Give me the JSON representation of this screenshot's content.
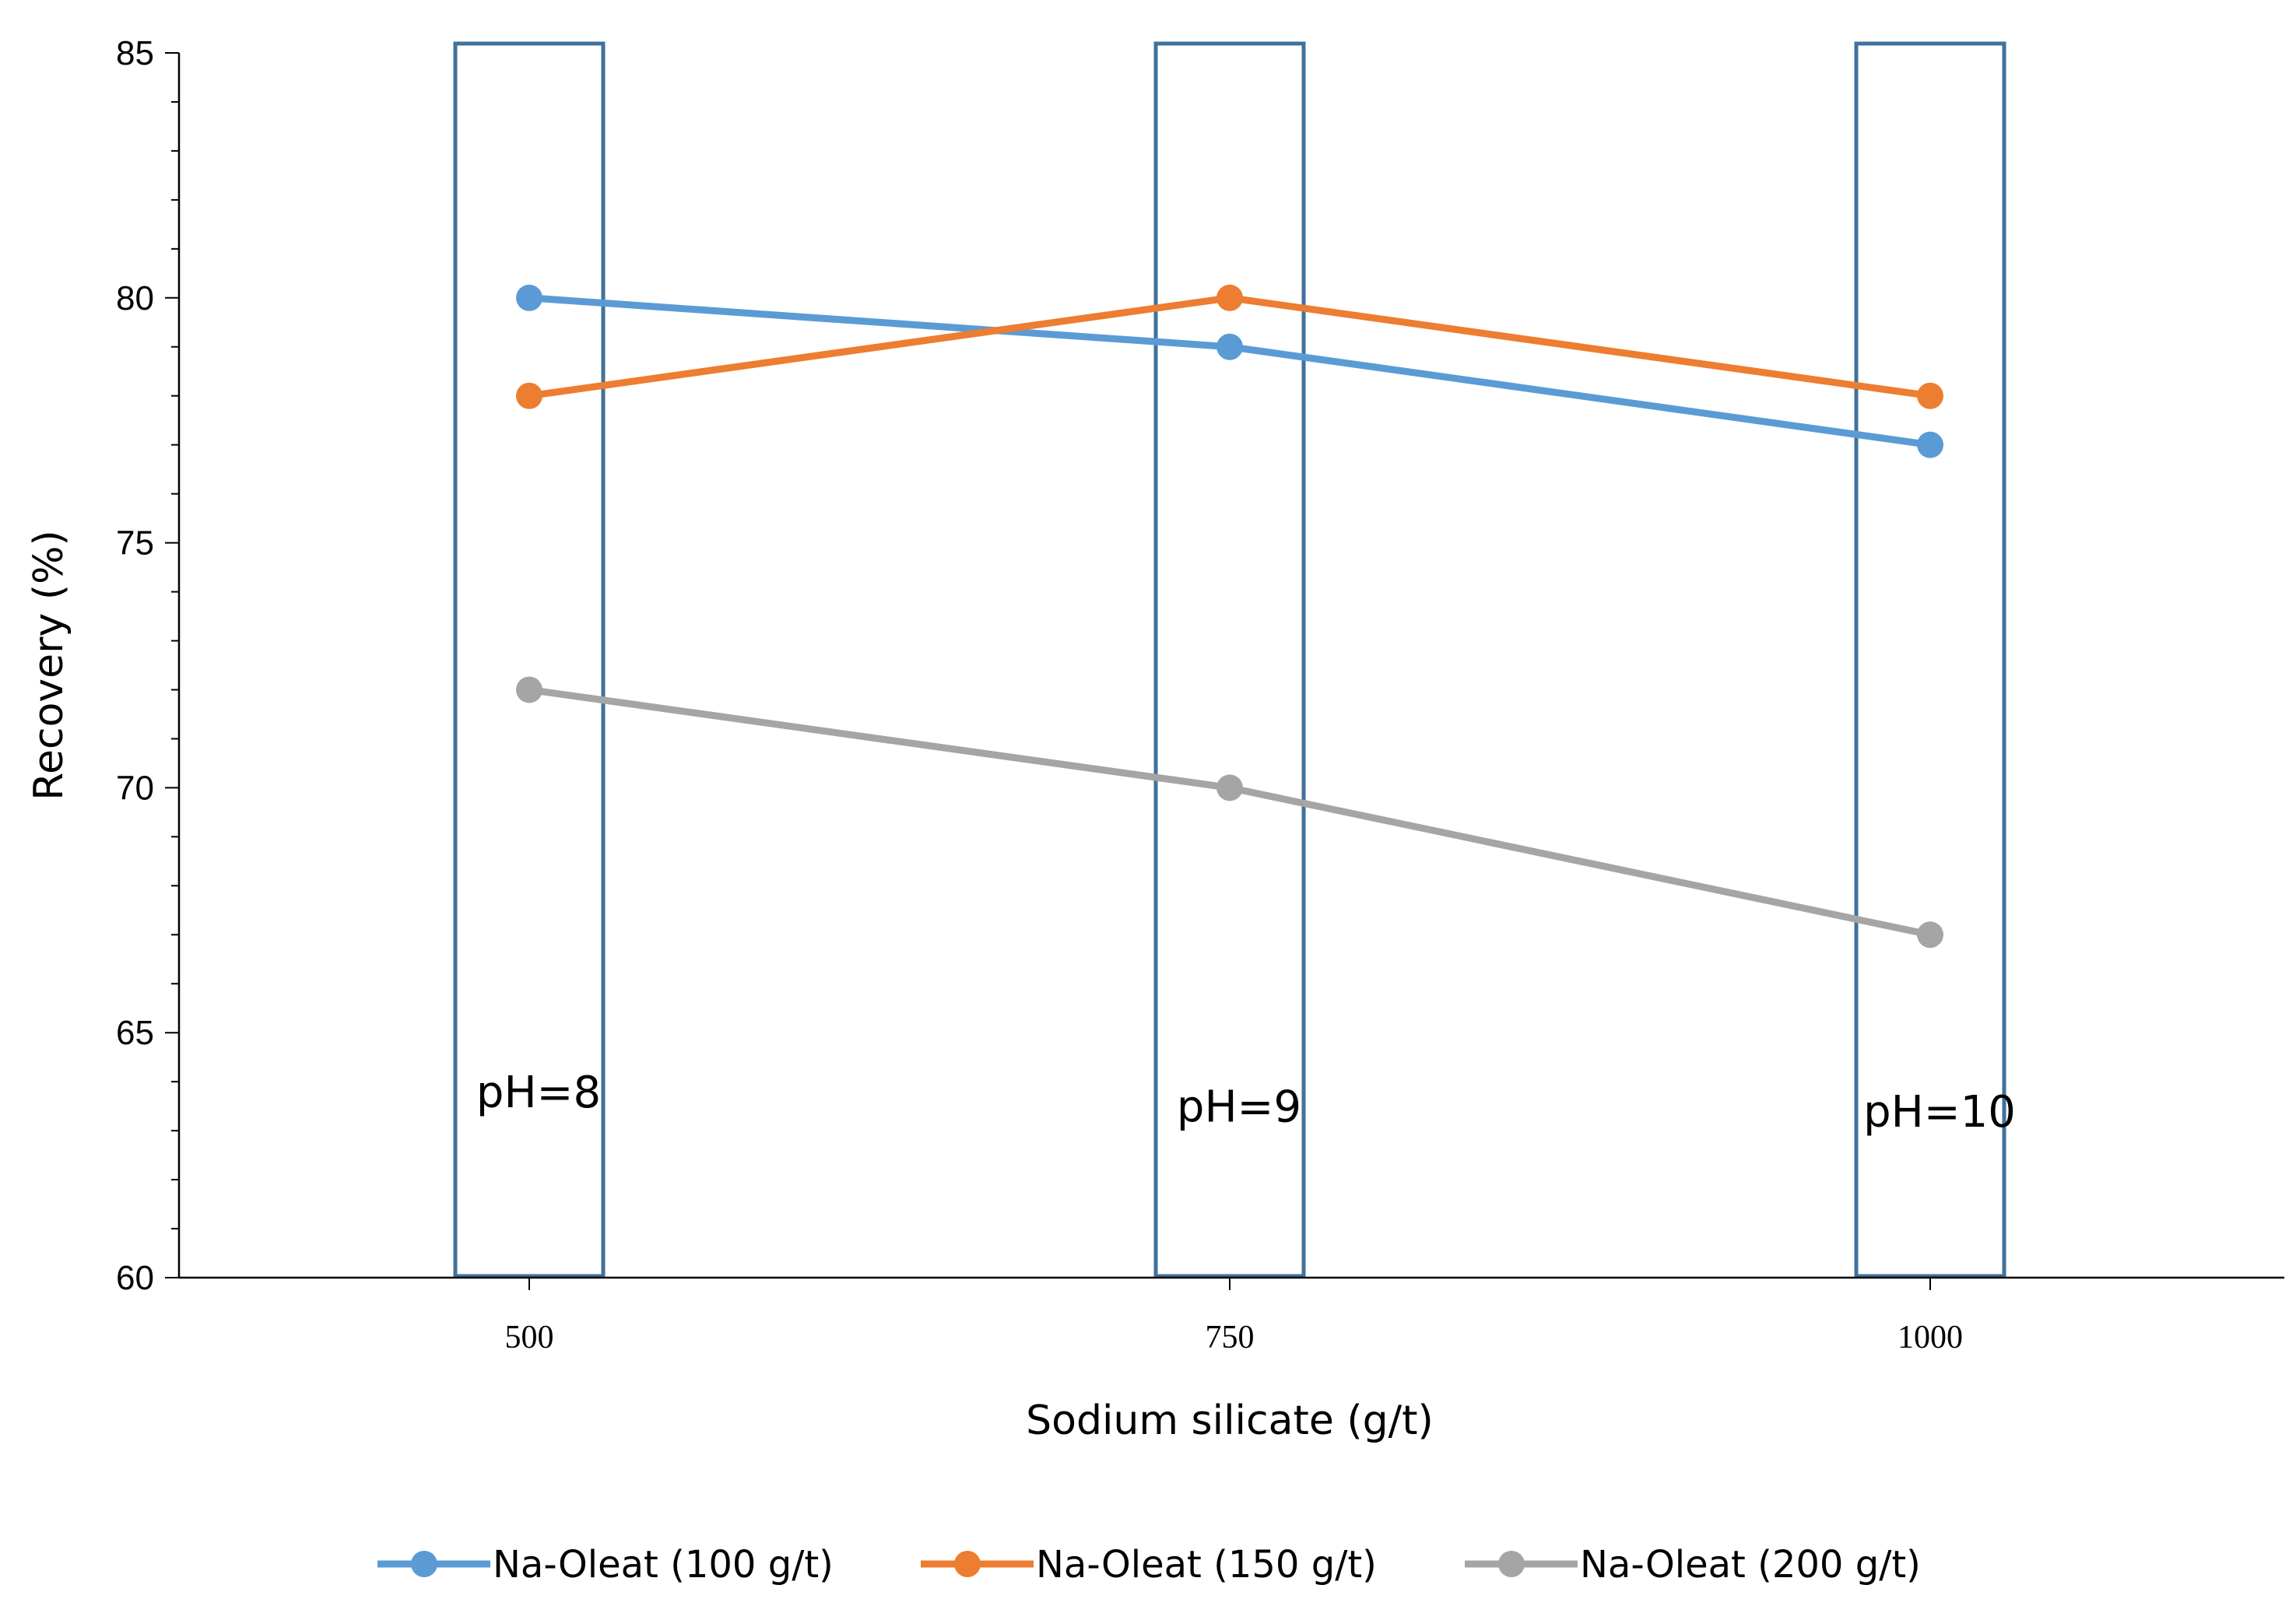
{
  "chart_data": {
    "type": "line",
    "xlabel": "Sodium silicate (g/t)",
    "ylabel": "Recovery (%)",
    "categories": [
      "500",
      "750",
      "1000"
    ],
    "ylim": [
      60,
      85
    ],
    "y_major_ticks": [
      60,
      65,
      70,
      75,
      80,
      85
    ],
    "y_minor_step": 1,
    "grid": false,
    "legend_position": "bottom",
    "series": [
      {
        "name": "Na-Oleat (100 g/t)",
        "values": [
          80,
          79,
          77
        ],
        "color": "#5b9bd5"
      },
      {
        "name": "Na-Oleat (150 g/t)",
        "values": [
          78,
          80,
          78
        ],
        "color": "#ed7d31"
      },
      {
        "name": "Na-Oleat (200 g/t)",
        "values": [
          72,
          70,
          67
        ],
        "color": "#a5a5a5"
      }
    ],
    "annotations": [
      {
        "text": "pH=8",
        "category": "500",
        "y": 63.8
      },
      {
        "text": "pH=9",
        "category": "750",
        "y": 63.5
      },
      {
        "text": "pH=10",
        "category": "1000",
        "y": 63.4
      }
    ],
    "box_color": "#41719c"
  }
}
